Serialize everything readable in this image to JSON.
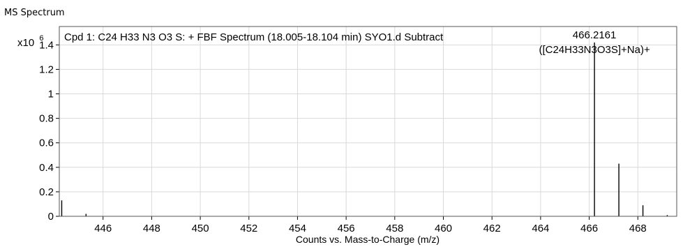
{
  "window_title": "MS Spectrum",
  "chart_data": {
    "type": "bar",
    "title": "Cpd 1: C24 H33 N3 O3 S: + FBF Spectrum (18.005-18.104 min) SYO1.d  Subtract",
    "xlabel": "Counts vs. Mass-to-Charge (m/z)",
    "ylabel": "",
    "y_multiplier_label": "x10",
    "y_multiplier_exponent": "6",
    "xlim": [
      444.2,
      469.6
    ],
    "ylim": [
      0,
      1.55
    ],
    "x_ticks": [
      446,
      448,
      450,
      452,
      454,
      456,
      458,
      460,
      462,
      464,
      466,
      468
    ],
    "x_tick_labels": [
      "446",
      "448",
      "450",
      "452",
      "454",
      "456",
      "458",
      "460",
      "462",
      "464",
      "466",
      "468"
    ],
    "y_ticks": [
      0,
      0.2,
      0.4,
      0.6,
      0.8,
      1,
      1.2,
      1.4
    ],
    "y_tick_labels": [
      "0",
      "0.2",
      "0.4",
      "0.6",
      "0.8",
      "1",
      "1.2",
      "1.4"
    ],
    "grid": true,
    "peaks": {
      "mz": [
        444.3,
        445.3,
        466.2161,
        467.22,
        468.21,
        469.21
      ],
      "intensity": [
        0.13,
        0.02,
        1.42,
        0.43,
        0.09,
        0.01
      ]
    },
    "annotations": [
      {
        "mz": 466.2161,
        "lines": [
          "466.2161",
          "([C24H33N3O3S]+Na)+"
        ]
      }
    ],
    "colors": {
      "peak": "#000000",
      "grid": "#d9d9d9",
      "frame": "#555555"
    }
  }
}
